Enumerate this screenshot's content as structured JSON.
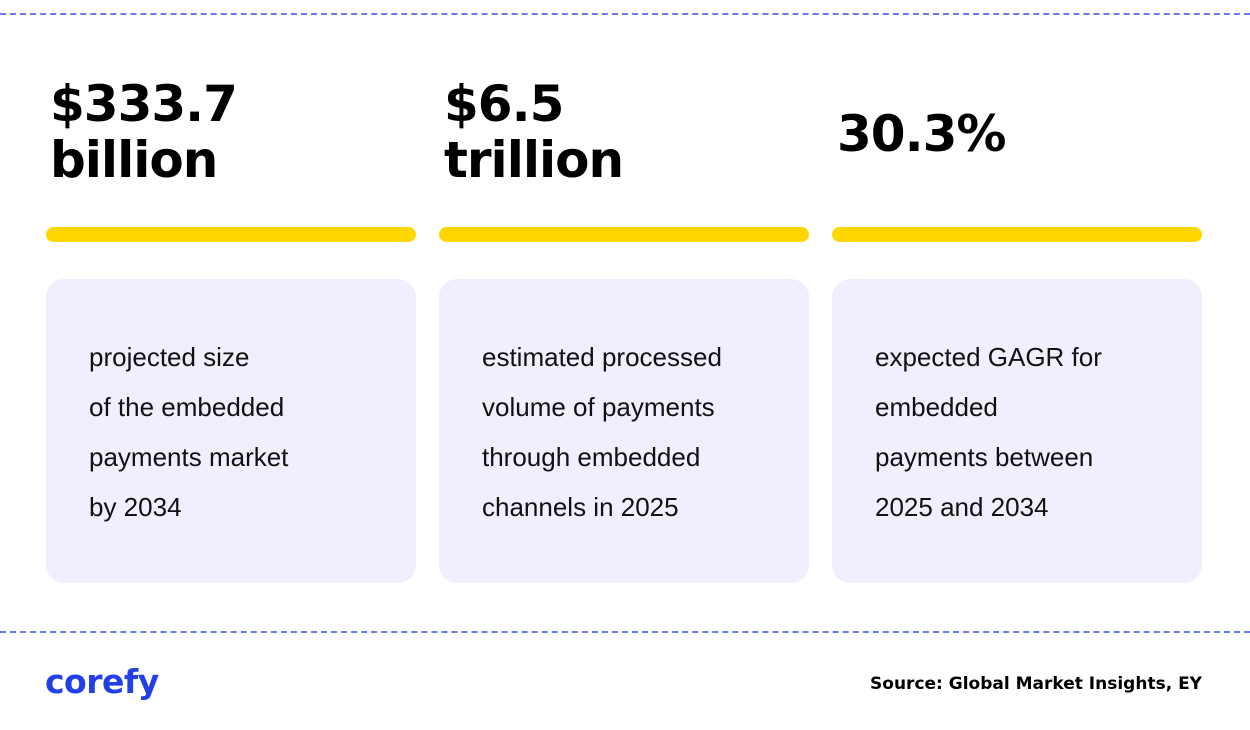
{
  "stats": [
    {
      "value_lines": [
        "$333.7",
        "billion"
      ],
      "description_lines": [
        "projected size",
        "of the embedded",
        "payments market",
        "by 2034"
      ]
    },
    {
      "value_lines": [
        "$6.5",
        "trillion"
      ],
      "description_lines": [
        "estimated processed",
        "volume of payments",
        "through embedded",
        "channels in 2025"
      ]
    },
    {
      "value_lines": [
        "30.3%"
      ],
      "description_lines": [
        "expected GAGR for",
        "embedded",
        "payments between",
        "2025 and 2034"
      ]
    }
  ],
  "footer": {
    "logo_text": "corefy",
    "source": "Source: Global Market Insights, EY"
  },
  "colors": {
    "accent_bar": "#ffd600",
    "card_background": "#efeffd",
    "dashed_line": "#6b78f0",
    "brand": "#2340e6"
  }
}
